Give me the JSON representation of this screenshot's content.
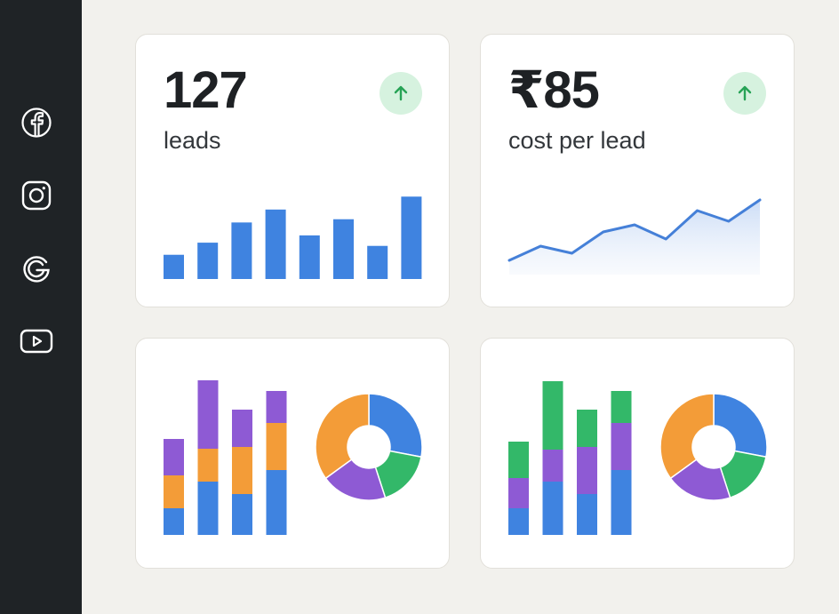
{
  "sidebar": {
    "items": [
      {
        "name": "facebook",
        "icon": "facebook-icon"
      },
      {
        "name": "instagram",
        "icon": "instagram-icon"
      },
      {
        "name": "google",
        "icon": "google-icon"
      },
      {
        "name": "youtube",
        "icon": "youtube-icon"
      }
    ]
  },
  "kpi_cards": [
    {
      "value": "127",
      "label": "leads",
      "trend": "up",
      "trend_icon": "arrow-up-icon"
    },
    {
      "value": "₹85",
      "label": "cost per lead",
      "trend": "up",
      "trend_icon": "arrow-up-icon"
    }
  ],
  "colors": {
    "sidebar_bg": "#1f2326",
    "blue": "#3f83e0",
    "orange": "#f39c38",
    "purple": "#8e5ad4",
    "green": "#33b869",
    "badge_bg": "#d6f2df",
    "badge_arrow": "#27a356",
    "line": "#4580d8"
  },
  "chart_data": [
    {
      "type": "bar",
      "values": [
        3,
        4.5,
        7,
        8.6,
        5.4,
        7.4,
        4.1,
        10.2
      ],
      "ylim": [
        0,
        11
      ]
    },
    {
      "type": "area",
      "values": [
        1,
        3,
        2,
        5,
        6,
        4,
        8,
        6.5,
        9.5
      ],
      "ylim": [
        0,
        10
      ]
    },
    {
      "type": "bar",
      "stacked": true,
      "series": [
        {
          "color": "blue",
          "values": [
            3,
            6,
            4.6,
            7.3
          ]
        },
        {
          "color": "orange",
          "values": [
            3.7,
            3.7,
            5.3,
            5.3
          ]
        },
        {
          "color": "purple",
          "values": [
            4.1,
            7.7,
            4.2,
            3.6
          ]
        }
      ],
      "ylim": [
        0,
        17
      ]
    },
    {
      "type": "pie",
      "donut": true,
      "slices": [
        {
          "color": "blue",
          "value": 28
        },
        {
          "color": "green",
          "value": 17
        },
        {
          "color": "purple",
          "value": 20
        },
        {
          "color": "orange",
          "value": 35
        }
      ]
    },
    {
      "type": "bar",
      "stacked": true,
      "series": [
        {
          "color": "blue",
          "values": [
            3,
            6,
            4.6,
            7.3
          ]
        },
        {
          "color": "purple",
          "values": [
            3.4,
            3.6,
            5.3,
            5.3
          ]
        },
        {
          "color": "green",
          "values": [
            4.1,
            7.7,
            4.2,
            3.6
          ]
        }
      ],
      "ylim": [
        0,
        17
      ]
    },
    {
      "type": "pie",
      "donut": true,
      "slices": [
        {
          "color": "blue",
          "value": 28
        },
        {
          "color": "green",
          "value": 17
        },
        {
          "color": "purple",
          "value": 20
        },
        {
          "color": "orange",
          "value": 35
        }
      ]
    }
  ]
}
